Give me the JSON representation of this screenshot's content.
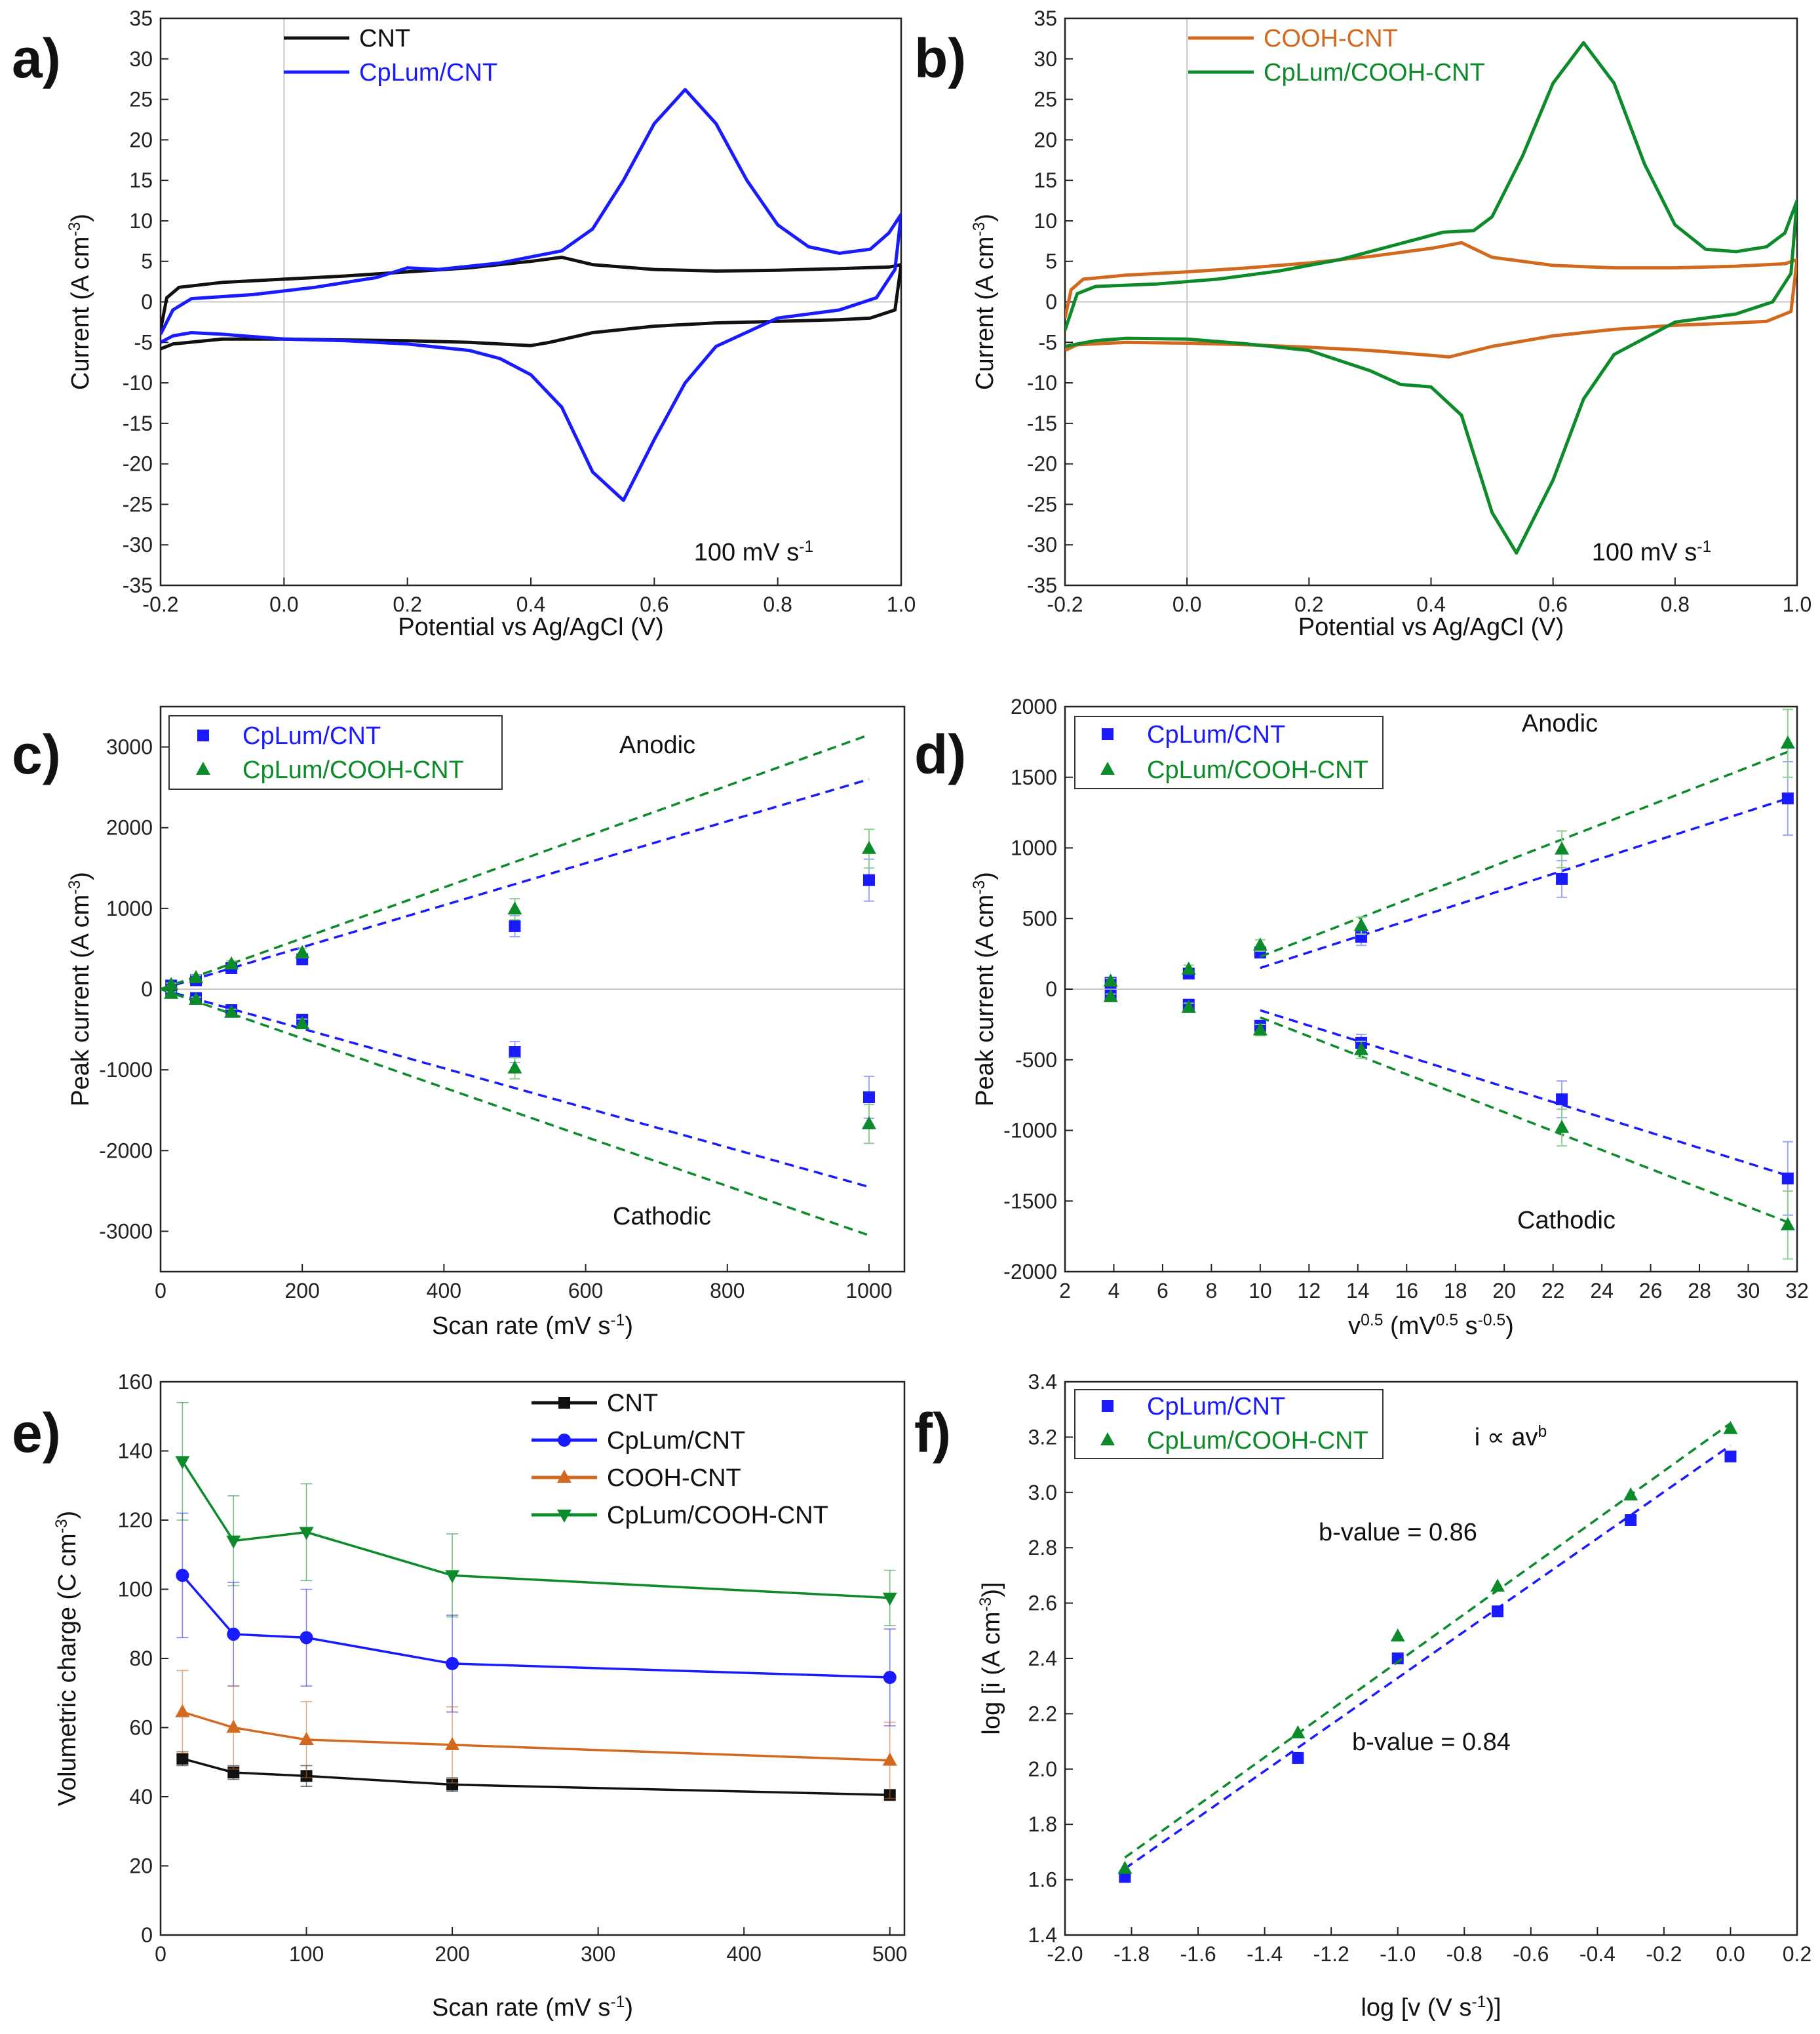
{
  "colors": {
    "CNT": "#111111",
    "CpLum/CNT": "#1a1aff",
    "COOH-CNT": "#d2691e",
    "CpLum/COOH-CNT": "#0d8a2a",
    "errorbar_blue": "#9aa6ff",
    "errorbar_green": "#8fcf8f"
  },
  "chart_data": [
    {
      "panel": "a)",
      "type": "line",
      "xlabel": "Potential vs Ag/AgCl (V)",
      "ylabel": "Current (A cm-3)",
      "xlim": [
        -0.2,
        1.0
      ],
      "ylim": [
        -35,
        35
      ],
      "xticks": [
        -0.2,
        0.0,
        0.2,
        0.4,
        0.6,
        0.8,
        1.0
      ],
      "xtick_labels": [
        "-0.2",
        "0.0",
        "0.2",
        "0.4",
        "0.6",
        "0.8",
        "1.0"
      ],
      "yticks": [
        -35,
        -30,
        -25,
        -20,
        -15,
        -10,
        -5,
        0,
        5,
        10,
        15,
        20,
        25,
        30,
        35
      ],
      "ytick_labels": [
        "-35",
        "-30",
        "-25",
        "-20",
        "-15",
        "-10",
        "-5",
        "0",
        "5",
        "10",
        "15",
        "20",
        "25",
        "30",
        "35"
      ],
      "annotation": "100 mV s-1",
      "legend_position": "top-left",
      "series": [
        {
          "name": "CNT",
          "x": [
            -0.2,
            -0.19,
            -0.17,
            -0.1,
            0.0,
            0.1,
            0.2,
            0.3,
            0.4,
            0.45,
            0.5,
            0.6,
            0.7,
            0.8,
            0.9,
            0.98,
            1.0,
            0.99,
            0.95,
            0.9,
            0.8,
            0.7,
            0.6,
            0.5,
            0.43,
            0.4,
            0.3,
            0.2,
            0.1,
            0.0,
            -0.1,
            -0.18,
            -0.2
          ],
          "y": [
            -3.5,
            0.5,
            1.8,
            2.4,
            2.8,
            3.2,
            3.7,
            4.2,
            5.0,
            5.5,
            4.6,
            4.0,
            3.8,
            3.9,
            4.1,
            4.3,
            4.6,
            -1.0,
            -2.0,
            -2.2,
            -2.4,
            -2.6,
            -3.0,
            -3.8,
            -5.0,
            -5.4,
            -5.0,
            -4.8,
            -4.7,
            -4.6,
            -4.6,
            -5.2,
            -5.8
          ]
        },
        {
          "name": "CpLum/CNT",
          "x": [
            -0.2,
            -0.18,
            -0.15,
            -0.05,
            0.05,
            0.15,
            0.2,
            0.25,
            0.35,
            0.45,
            0.5,
            0.55,
            0.6,
            0.65,
            0.7,
            0.75,
            0.8,
            0.85,
            0.9,
            0.95,
            0.98,
            1.0,
            0.99,
            0.96,
            0.9,
            0.8,
            0.7,
            0.65,
            0.6,
            0.55,
            0.5,
            0.45,
            0.4,
            0.35,
            0.3,
            0.2,
            0.1,
            0.0,
            -0.1,
            -0.15,
            -0.18,
            -0.2
          ],
          "y": [
            -4.0,
            -1.0,
            0.4,
            0.9,
            1.8,
            3.0,
            4.2,
            4.0,
            4.8,
            6.3,
            9.0,
            15.0,
            22.0,
            26.2,
            22.0,
            15.0,
            9.5,
            6.8,
            6.0,
            6.5,
            8.5,
            10.8,
            4.0,
            0.5,
            -1.0,
            -2.0,
            -5.5,
            -10.0,
            -17.0,
            -24.5,
            -21.0,
            -13.0,
            -9.0,
            -7.0,
            -6.0,
            -5.2,
            -4.8,
            -4.6,
            -4.0,
            -3.8,
            -4.2,
            -5.0
          ]
        }
      ]
    },
    {
      "panel": "b)",
      "type": "line",
      "xlabel": "Potential vs Ag/AgCl (V)",
      "ylabel": "Current (A cm-3)",
      "xlim": [
        -0.2,
        1.0
      ],
      "ylim": [
        -35,
        35
      ],
      "xticks": [
        -0.2,
        0.0,
        0.2,
        0.4,
        0.6,
        0.8,
        1.0
      ],
      "xtick_labels": [
        "-0.2",
        "0.0",
        "0.2",
        "0.4",
        "0.6",
        "0.8",
        "1.0"
      ],
      "yticks": [
        -35,
        -30,
        -25,
        -20,
        -15,
        -10,
        -5,
        0,
        5,
        10,
        15,
        20,
        25,
        30,
        35
      ],
      "ytick_labels": [
        "-35",
        "-30",
        "-25",
        "-20",
        "-15",
        "-10",
        "-5",
        "0",
        "5",
        "10",
        "15",
        "20",
        "25",
        "30",
        "35"
      ],
      "annotation": "100 mV s-1",
      "legend_position": "top-left",
      "series": [
        {
          "name": "COOH-CNT",
          "x": [
            -0.2,
            -0.19,
            -0.17,
            -0.1,
            0.0,
            0.1,
            0.2,
            0.3,
            0.4,
            0.45,
            0.5,
            0.6,
            0.7,
            0.8,
            0.9,
            0.98,
            1.0,
            0.99,
            0.95,
            0.9,
            0.8,
            0.7,
            0.6,
            0.5,
            0.43,
            0.4,
            0.3,
            0.2,
            0.1,
            0.0,
            -0.1,
            -0.18,
            -0.2
          ],
          "y": [
            -2.0,
            1.5,
            2.8,
            3.3,
            3.7,
            4.2,
            4.8,
            5.6,
            6.6,
            7.3,
            5.5,
            4.5,
            4.2,
            4.2,
            4.4,
            4.7,
            5.2,
            -1.2,
            -2.4,
            -2.6,
            -2.9,
            -3.4,
            -4.2,
            -5.5,
            -6.8,
            -6.6,
            -6.0,
            -5.6,
            -5.3,
            -5.1,
            -5.0,
            -5.3,
            -6.0
          ]
        },
        {
          "name": "CpLum/COOH-CNT",
          "x": [
            -0.2,
            -0.18,
            -0.15,
            -0.05,
            0.05,
            0.15,
            0.25,
            0.35,
            0.42,
            0.47,
            0.5,
            0.55,
            0.6,
            0.65,
            0.7,
            0.75,
            0.8,
            0.85,
            0.9,
            0.95,
            0.98,
            1.0,
            0.99,
            0.96,
            0.9,
            0.8,
            0.7,
            0.65,
            0.6,
            0.54,
            0.5,
            0.45,
            0.4,
            0.35,
            0.3,
            0.2,
            0.1,
            0.0,
            -0.1,
            -0.15,
            -0.18,
            -0.2
          ],
          "y": [
            -3.5,
            1.0,
            1.9,
            2.2,
            2.8,
            3.8,
            5.2,
            7.2,
            8.6,
            8.8,
            10.5,
            18.0,
            27.0,
            32.0,
            27.0,
            17.0,
            9.5,
            6.5,
            6.2,
            6.8,
            8.5,
            12.5,
            3.5,
            0.0,
            -1.5,
            -2.5,
            -6.5,
            -12.0,
            -22.0,
            -31.0,
            -26.0,
            -14.0,
            -10.5,
            -10.2,
            -8.5,
            -6.0,
            -5.2,
            -4.6,
            -4.5,
            -4.8,
            -5.2,
            -5.5
          ]
        }
      ]
    },
    {
      "panel": "c)",
      "type": "scatter",
      "xlabel": "Scan rate (mV s-1)",
      "ylabel": "Peak current (A cm-3)",
      "xlim": [
        0,
        1050
      ],
      "ylim": [
        -3500,
        3500
      ],
      "xticks": [
        0,
        200,
        400,
        600,
        800,
        1000
      ],
      "xtick_labels": [
        "0",
        "200",
        "400",
        "600",
        "800",
        "1000"
      ],
      "yticks": [
        -3000,
        -2000,
        -1000,
        0,
        1000,
        2000,
        3000
      ],
      "ytick_labels": [
        "-3000",
        "-2000",
        "-1000",
        "0",
        "1000",
        "2000",
        "3000"
      ],
      "annotations": [
        "Anodic",
        "Cathodic"
      ],
      "legend_position": "top-left",
      "series": [
        {
          "name": "CpLum/CNT",
          "x": [
            15,
            50,
            100,
            200,
            500,
            1000
          ],
          "anodic": [
            45,
            110,
            260,
            370,
            780,
            1350
          ],
          "cathodic": [
            -45,
            -110,
            -260,
            -380,
            -780,
            -1340
          ],
          "err": [
            20,
            30,
            40,
            60,
            130,
            260
          ],
          "fit_anodic": [
            [
              0,
              0
            ],
            [
              1000,
              2600
            ]
          ],
          "fit_cathodic": [
            [
              0,
              0
            ],
            [
              1000,
              -2450
            ]
          ]
        },
        {
          "name": "CpLum/COOH-CNT",
          "x": [
            15,
            50,
            100,
            200,
            500,
            1000
          ],
          "anodic": [
            55,
            140,
            310,
            450,
            990,
            1740
          ],
          "cathodic": [
            -55,
            -130,
            -290,
            -430,
            -980,
            -1670
          ],
          "err": [
            20,
            30,
            40,
            60,
            130,
            240
          ],
          "fit_anodic": [
            [
              0,
              0
            ],
            [
              1000,
              3150
            ]
          ],
          "fit_cathodic": [
            [
              0,
              0
            ],
            [
              1000,
              -3050
            ]
          ]
        }
      ]
    },
    {
      "panel": "d)",
      "type": "scatter",
      "xlabel": "v0.5 (mV0.5 s-0.5)",
      "ylabel": "Peak current (A cm-3)",
      "xlim": [
        2,
        32
      ],
      "ylim": [
        -2000,
        2000
      ],
      "xticks": [
        2,
        4,
        6,
        8,
        10,
        12,
        14,
        16,
        18,
        20,
        22,
        24,
        26,
        28,
        30,
        32
      ],
      "xtick_labels": [
        "2",
        "4",
        "6",
        "8",
        "10",
        "12",
        "14",
        "16",
        "18",
        "20",
        "22",
        "24",
        "26",
        "28",
        "30",
        "32"
      ],
      "yticks": [
        -2000,
        -1500,
        -1000,
        -500,
        0,
        500,
        1000,
        1500,
        2000
      ],
      "ytick_labels": [
        "-2000",
        "-1500",
        "-1000",
        "-500",
        "0",
        "500",
        "1000",
        "1500",
        "2000"
      ],
      "annotations": [
        "Anodic",
        "Cathodic"
      ],
      "legend_position": "top-left",
      "series": [
        {
          "name": "CpLum/CNT",
          "x": [
            3.87,
            7.07,
            10.0,
            14.14,
            22.36,
            31.62
          ],
          "anodic": [
            45,
            110,
            260,
            370,
            780,
            1350
          ],
          "cathodic": [
            -45,
            -110,
            -260,
            -380,
            -780,
            -1340
          ],
          "err": [
            20,
            30,
            40,
            60,
            130,
            260
          ],
          "fit_anodic": [
            [
              10,
              150
            ],
            [
              31.62,
              1350
            ]
          ],
          "fit_cathodic": [
            [
              10,
              -150
            ],
            [
              31.62,
              -1320
            ]
          ]
        },
        {
          "name": "CpLum/COOH-CNT",
          "x": [
            3.87,
            7.07,
            10.0,
            14.14,
            22.36,
            31.62
          ],
          "anodic": [
            55,
            140,
            310,
            450,
            990,
            1740
          ],
          "cathodic": [
            -55,
            -130,
            -290,
            -430,
            -980,
            -1670
          ],
          "err": [
            20,
            30,
            40,
            60,
            130,
            240
          ],
          "fit_anodic": [
            [
              10,
              230
            ],
            [
              31.62,
              1680
            ]
          ],
          "fit_cathodic": [
            [
              10,
              -200
            ],
            [
              31.62,
              -1650
            ]
          ]
        }
      ]
    },
    {
      "panel": "e)",
      "type": "line",
      "xlabel": "Scan rate (mV s-1)",
      "ylabel": "Volumetric charge (C cm-3)",
      "xlim": [
        0,
        510
      ],
      "ylim": [
        0,
        160
      ],
      "xticks": [
        0,
        100,
        200,
        300,
        400,
        500
      ],
      "xtick_labels": [
        "0",
        "100",
        "200",
        "300",
        "400",
        "500"
      ],
      "yticks": [
        0,
        20,
        40,
        60,
        80,
        100,
        120,
        140,
        160
      ],
      "ytick_labels": [
        "0",
        "20",
        "40",
        "60",
        "80",
        "100",
        "120",
        "140",
        "160"
      ],
      "legend_position": "top-right",
      "series": [
        {
          "name": "CNT",
          "marker": "square",
          "x": [
            15,
            50,
            100,
            200,
            500
          ],
          "y": [
            51,
            47,
            46,
            43.5,
            40.5
          ],
          "err": [
            2,
            2,
            3,
            2,
            1
          ]
        },
        {
          "name": "CpLum/CNT",
          "marker": "circle",
          "x": [
            15,
            50,
            100,
            200,
            500
          ],
          "y": [
            104,
            87,
            86,
            78.5,
            74.5
          ],
          "err": [
            18,
            15,
            14,
            14,
            14
          ]
        },
        {
          "name": "COOH-CNT",
          "marker": "triangle-up",
          "x": [
            15,
            50,
            100,
            200,
            500
          ],
          "y": [
            64.5,
            60,
            56.5,
            55,
            50.5
          ],
          "err": [
            12,
            12,
            11,
            11,
            11
          ]
        },
        {
          "name": "CpLum/COOH-CNT",
          "marker": "triangle-down",
          "x": [
            15,
            50,
            100,
            200,
            500
          ],
          "y": [
            137,
            114,
            116.5,
            104,
            97.5
          ],
          "err": [
            17,
            13,
            14,
            12,
            8
          ]
        }
      ]
    },
    {
      "panel": "f)",
      "type": "scatter",
      "xlabel": "log [v (V s-1)]",
      "ylabel": "log [i (A cm-3)]",
      "xlim": [
        -2.0,
        0.2
      ],
      "ylim": [
        1.4,
        3.4
      ],
      "xticks": [
        -2.0,
        -1.8,
        -1.6,
        -1.4,
        -1.2,
        -1.0,
        -0.8,
        -0.6,
        -0.4,
        -0.2,
        0.0,
        0.2
      ],
      "xtick_labels": [
        "-2.0",
        "-1.8",
        "-1.6",
        "-1.4",
        "-1.2",
        "-1.0",
        "-0.8",
        "-0.6",
        "-0.4",
        "-0.2",
        "0.0",
        "0.2"
      ],
      "yticks": [
        1.4,
        1.6,
        1.8,
        2.0,
        2.2,
        2.4,
        2.6,
        2.8,
        3.0,
        3.2,
        3.4
      ],
      "ytick_labels": [
        "1.4",
        "1.6",
        "1.8",
        "2.0",
        "2.2",
        "2.4",
        "2.6",
        "2.8",
        "3.0",
        "3.2",
        "3.4"
      ],
      "annotations": [
        "i ∝ avb",
        "b-value = 0.86",
        "b-value = 0.84"
      ],
      "legend_position": "top-left",
      "series": [
        {
          "name": "CpLum/CNT",
          "x": [
            -1.82,
            -1.3,
            -1.0,
            -0.7,
            -0.3,
            0.0
          ],
          "y": [
            1.61,
            2.04,
            2.4,
            2.57,
            2.9,
            3.13
          ],
          "fit": [
            [
              -1.82,
              1.64
            ],
            [
              0.0,
              3.17
            ]
          ]
        },
        {
          "name": "CpLum/COOH-CNT",
          "x": [
            -1.82,
            -1.3,
            -1.0,
            -0.7,
            -0.3,
            0.0
          ],
          "y": [
            1.64,
            2.13,
            2.48,
            2.66,
            2.99,
            3.23
          ],
          "fit": [
            [
              -1.82,
              1.68
            ],
            [
              0.0,
              3.25
            ]
          ]
        }
      ]
    }
  ]
}
